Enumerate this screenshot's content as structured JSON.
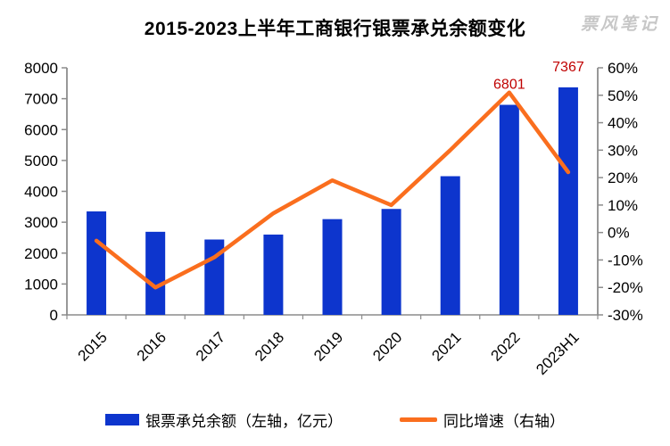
{
  "watermark": {
    "text": "票风笔记"
  },
  "chart_data": {
    "type": "bar",
    "combo": "bar+line",
    "title": "2015-2023上半年工商银行银票承兑余额变化",
    "categories": [
      "2015",
      "2016",
      "2017",
      "2018",
      "2019",
      "2020",
      "2021",
      "2022",
      "2023H1"
    ],
    "series": [
      {
        "name": "银票承兑余额（左轴，亿元）",
        "type": "bar",
        "axis": "left",
        "values": [
          3350,
          2690,
          2440,
          2600,
          3100,
          3430,
          4490,
          6801,
          7367
        ],
        "color": "#0d35cd"
      },
      {
        "name": "同比增速（右轴）",
        "type": "line",
        "axis": "right",
        "values": [
          -3,
          -20,
          -9,
          7,
          19,
          10,
          30,
          51,
          22
        ],
        "unit": "%",
        "color": "#fa6e1e"
      }
    ],
    "data_labels": [
      {
        "category": "2022",
        "text": "6801"
      },
      {
        "category": "2023H1",
        "text": "7367"
      }
    ],
    "data_label_color": "#c00000",
    "left_axis": {
      "min": 0,
      "max": 8000,
      "step": 1000
    },
    "right_axis": {
      "min": -30,
      "max": 60,
      "step": 10,
      "suffix": "%"
    },
    "grid": false,
    "legend_position": "bottom",
    "axis_color": "#8c8c8c",
    "tick_label_color": "#000000"
  }
}
